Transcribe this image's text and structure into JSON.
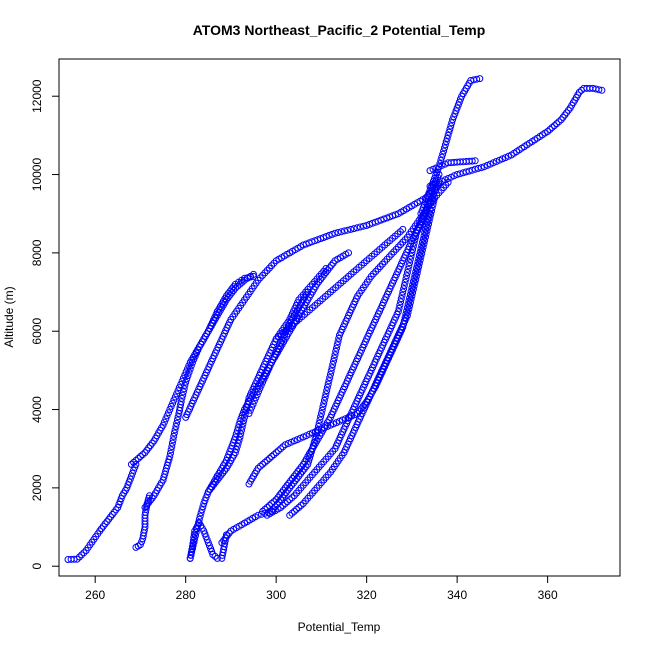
{
  "chart_data": {
    "type": "scatter",
    "title": "ATOM3 Northeast_Pacific_2 Potential_Temp",
    "xlabel": "Potential_Temp",
    "ylabel": "Altitude (m)",
    "xlim": [
      252,
      376
    ],
    "ylim": [
      -250,
      12950
    ],
    "x_ticks": [
      260,
      280,
      300,
      320,
      340,
      360
    ],
    "y_ticks": [
      0,
      2000,
      4000,
      6000,
      8000,
      10000,
      12000
    ],
    "marker": "open-circle",
    "color": "#0000ff",
    "grid": false,
    "series": [
      {
        "profile": [
          [
            254,
            170
          ],
          [
            256,
            180
          ],
          [
            258,
            400
          ],
          [
            261,
            900
          ],
          [
            263,
            1200
          ],
          [
            265,
            1500
          ],
          [
            266,
            1800
          ],
          [
            267,
            2000
          ],
          [
            268,
            2300
          ],
          [
            269,
            2600
          ]
        ]
      },
      {
        "profile": [
          [
            269,
            480
          ],
          [
            270,
            550
          ],
          [
            270.5,
            700
          ],
          [
            271,
            1000
          ],
          [
            271,
            1300
          ],
          [
            271.5,
            1600
          ],
          [
            272,
            1800
          ]
        ]
      },
      {
        "profile": [
          [
            271,
            1500
          ],
          [
            273,
            1800
          ],
          [
            275,
            2200
          ],
          [
            276.5,
            2800
          ],
          [
            277.5,
            3400
          ],
          [
            278.5,
            3900
          ],
          [
            279,
            4200
          ],
          [
            280,
            4700
          ],
          [
            281.5,
            5200
          ],
          [
            283,
            5600
          ],
          [
            285,
            6000
          ],
          [
            287,
            6400
          ],
          [
            289,
            6800
          ],
          [
            291,
            7100
          ],
          [
            293,
            7300
          ],
          [
            295,
            7450
          ]
        ]
      },
      {
        "profile": [
          [
            268,
            2600
          ],
          [
            271,
            2900
          ],
          [
            273,
            3200
          ],
          [
            275,
            3600
          ],
          [
            276.5,
            4000
          ],
          [
            278,
            4400
          ],
          [
            279.5,
            4800
          ],
          [
            281,
            5200
          ],
          [
            283,
            5600
          ],
          [
            285,
            6000
          ],
          [
            287,
            6500
          ],
          [
            289,
            6900
          ],
          [
            291,
            7200
          ],
          [
            293,
            7350
          ],
          [
            295,
            7400
          ]
        ]
      },
      {
        "profile": [
          [
            280,
            3800
          ],
          [
            282,
            4300
          ],
          [
            284,
            4800
          ],
          [
            286,
            5300
          ],
          [
            288,
            5800
          ],
          [
            290,
            6300
          ],
          [
            293,
            6800
          ],
          [
            296,
            7300
          ],
          [
            300,
            7800
          ],
          [
            306,
            8200
          ],
          [
            313,
            8500
          ],
          [
            320,
            8700
          ],
          [
            327,
            9000
          ],
          [
            333,
            9400
          ],
          [
            336,
            9750
          ]
        ]
      },
      {
        "profile": [
          [
            281,
            200
          ],
          [
            282,
            700
          ],
          [
            283,
            1200
          ],
          [
            284,
            1600
          ],
          [
            285,
            1900
          ],
          [
            286,
            2100
          ],
          [
            287,
            2300
          ]
        ]
      },
      {
        "profile": [
          [
            281,
            200
          ],
          [
            281.5,
            500
          ],
          [
            282,
            900
          ],
          [
            283,
            1100
          ],
          [
            284,
            900
          ],
          [
            285,
            600
          ],
          [
            286,
            300
          ],
          [
            287,
            200
          ],
          [
            288,
            200
          ],
          [
            288.5,
            500
          ],
          [
            289,
            800
          ]
        ]
      },
      {
        "profile": [
          [
            287,
            2300
          ],
          [
            289,
            2700
          ],
          [
            290,
            3000
          ],
          [
            291,
            3300
          ],
          [
            292,
            3700
          ],
          [
            293,
            4000
          ],
          [
            295,
            4400
          ],
          [
            297,
            4800
          ],
          [
            299,
            5200
          ],
          [
            301,
            5600
          ],
          [
            303,
            6000
          ],
          [
            305,
            6400
          ],
          [
            307,
            6800
          ],
          [
            309,
            7200
          ],
          [
            311,
            7500
          ],
          [
            313,
            7800
          ],
          [
            316,
            8000
          ]
        ]
      },
      {
        "profile": [
          [
            285,
            1900
          ],
          [
            287,
            2200
          ],
          [
            289,
            2500
          ],
          [
            291,
            2900
          ],
          [
            292,
            3300
          ],
          [
            293,
            3800
          ],
          [
            294,
            4300
          ],
          [
            296,
            4800
          ],
          [
            298,
            5300
          ],
          [
            300,
            5800
          ],
          [
            303,
            6300
          ],
          [
            305,
            6800
          ],
          [
            308,
            7200
          ],
          [
            311,
            7600
          ]
        ]
      },
      {
        "profile": [
          [
            294,
            3900
          ],
          [
            295.5,
            4300
          ],
          [
            297,
            4700
          ],
          [
            299,
            5200
          ],
          [
            301,
            5700
          ],
          [
            303,
            6200
          ],
          [
            305,
            6600
          ],
          [
            307,
            7000
          ]
        ]
      },
      {
        "profile": [
          [
            288,
            600
          ],
          [
            290,
            900
          ],
          [
            293,
            1100
          ],
          [
            296,
            1300
          ],
          [
            299,
            1400
          ],
          [
            301,
            1700
          ],
          [
            303,
            2000
          ],
          [
            305,
            2300
          ],
          [
            307,
            2600
          ],
          [
            308,
            3000
          ],
          [
            309,
            3400
          ],
          [
            310,
            3900
          ],
          [
            311,
            4400
          ],
          [
            312,
            4900
          ],
          [
            313,
            5400
          ],
          [
            314,
            5900
          ],
          [
            316,
            6400
          ],
          [
            318,
            6900
          ],
          [
            321,
            7400
          ],
          [
            325,
            7900
          ],
          [
            329,
            8400
          ],
          [
            332,
            8900
          ],
          [
            335,
            9400
          ],
          [
            338,
            9800
          ]
        ]
      },
      {
        "profile": [
          [
            297,
            1400
          ],
          [
            300,
            1700
          ],
          [
            302,
            2000
          ],
          [
            304,
            2300
          ],
          [
            306,
            2600
          ],
          [
            308,
            3000
          ],
          [
            310,
            3400
          ],
          [
            312,
            3800
          ],
          [
            314,
            4300
          ],
          [
            316,
            4800
          ],
          [
            318,
            5300
          ],
          [
            320,
            5800
          ],
          [
            322,
            6300
          ],
          [
            324,
            6800
          ],
          [
            326,
            7300
          ],
          [
            328,
            7800
          ],
          [
            330,
            8300
          ],
          [
            332,
            8800
          ],
          [
            334,
            9300
          ],
          [
            336,
            9800
          ]
        ]
      },
      {
        "profile": [
          [
            298,
            1300
          ],
          [
            301,
            1500
          ],
          [
            304,
            1800
          ],
          [
            307,
            2200
          ],
          [
            310,
            2600
          ],
          [
            313,
            3000
          ],
          [
            315,
            3500
          ],
          [
            317,
            4000
          ],
          [
            319,
            4500
          ],
          [
            321,
            5000
          ],
          [
            323,
            5500
          ],
          [
            325,
            6000
          ],
          [
            327,
            6500
          ],
          [
            328,
            7000
          ],
          [
            329,
            7500
          ],
          [
            330,
            8000
          ],
          [
            331,
            8500
          ],
          [
            333,
            9000
          ],
          [
            334,
            9500
          ],
          [
            336,
            10000
          ]
        ]
      },
      {
        "profile": [
          [
            303,
            1300
          ],
          [
            306,
            1600
          ],
          [
            309,
            2000
          ],
          [
            312,
            2400
          ],
          [
            315,
            2900
          ],
          [
            317,
            3400
          ],
          [
            319,
            3900
          ],
          [
            321,
            4400
          ],
          [
            323,
            4900
          ],
          [
            325,
            5400
          ],
          [
            327,
            5900
          ],
          [
            329,
            6400
          ],
          [
            330,
            6900
          ],
          [
            331,
            7400
          ],
          [
            332,
            7900
          ],
          [
            333,
            8400
          ],
          [
            334,
            8900
          ],
          [
            335,
            9400
          ]
        ]
      },
      {
        "profile": [
          [
            294,
            2100
          ],
          [
            296,
            2500
          ],
          [
            299,
            2800
          ],
          [
            302,
            3100
          ],
          [
            306,
            3300
          ],
          [
            310,
            3500
          ],
          [
            314,
            3700
          ],
          [
            318,
            3900
          ],
          [
            320,
            4200
          ],
          [
            322,
            4600
          ],
          [
            324,
            5100
          ],
          [
            326,
            5600
          ],
          [
            328,
            6100
          ],
          [
            329,
            6600
          ],
          [
            330,
            7100
          ],
          [
            331,
            7600
          ],
          [
            332,
            8100
          ],
          [
            333,
            8600
          ],
          [
            334,
            9100
          ]
        ]
      },
      {
        "profile": [
          [
            300,
            5800
          ],
          [
            304,
            6200
          ],
          [
            308,
            6600
          ],
          [
            312,
            7000
          ],
          [
            316,
            7400
          ],
          [
            320,
            7800
          ],
          [
            324,
            8200
          ],
          [
            328,
            8600
          ]
        ]
      },
      {
        "profile": [
          [
            332,
            9000
          ],
          [
            334,
            9600
          ],
          [
            336,
            10200
          ],
          [
            337,
            10600
          ],
          [
            338,
            11000
          ],
          [
            339,
            11400
          ],
          [
            340,
            11700
          ],
          [
            341,
            12000
          ],
          [
            342,
            12200
          ],
          [
            343,
            12400
          ],
          [
            345,
            12450
          ]
        ]
      },
      {
        "profile": [
          [
            334,
            9700
          ],
          [
            340,
            10000
          ],
          [
            346,
            10200
          ],
          [
            352,
            10500
          ],
          [
            356,
            10800
          ],
          [
            360,
            11100
          ],
          [
            363,
            11400
          ],
          [
            365,
            11700
          ],
          [
            366,
            11900
          ],
          [
            367,
            12100
          ],
          [
            368,
            12200
          ],
          [
            370,
            12200
          ],
          [
            372,
            12150
          ]
        ]
      },
      {
        "profile": [
          [
            334,
            10100
          ],
          [
            338,
            10300
          ],
          [
            344,
            10350
          ]
        ]
      }
    ]
  }
}
